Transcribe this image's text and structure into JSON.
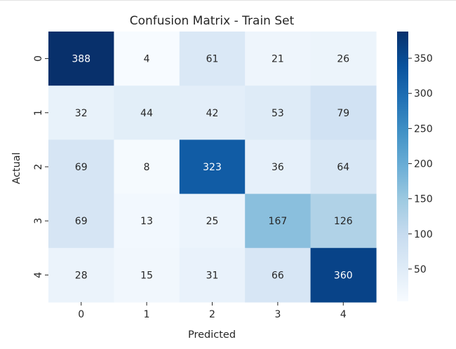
{
  "chart_data": {
    "type": "heatmap",
    "title": "Confusion Matrix - Train Set",
    "xlabel": "Predicted",
    "ylabel": "Actual",
    "x_categories": [
      "0",
      "1",
      "2",
      "3",
      "4"
    ],
    "y_categories": [
      "0",
      "1",
      "2",
      "3",
      "4"
    ],
    "values": [
      [
        388,
        4,
        61,
        21,
        26
      ],
      [
        32,
        44,
        42,
        53,
        79
      ],
      [
        69,
        8,
        323,
        36,
        64
      ],
      [
        69,
        13,
        25,
        167,
        126
      ],
      [
        28,
        15,
        31,
        66,
        360
      ]
    ],
    "colormap": "Blues",
    "vmin": 4,
    "vmax": 388,
    "colorbar_ticks": [
      "50",
      "100",
      "150",
      "200",
      "250",
      "300",
      "350"
    ],
    "colorbar_tick_values": [
      50,
      100,
      150,
      200,
      250,
      300,
      350
    ],
    "annotations": true
  }
}
